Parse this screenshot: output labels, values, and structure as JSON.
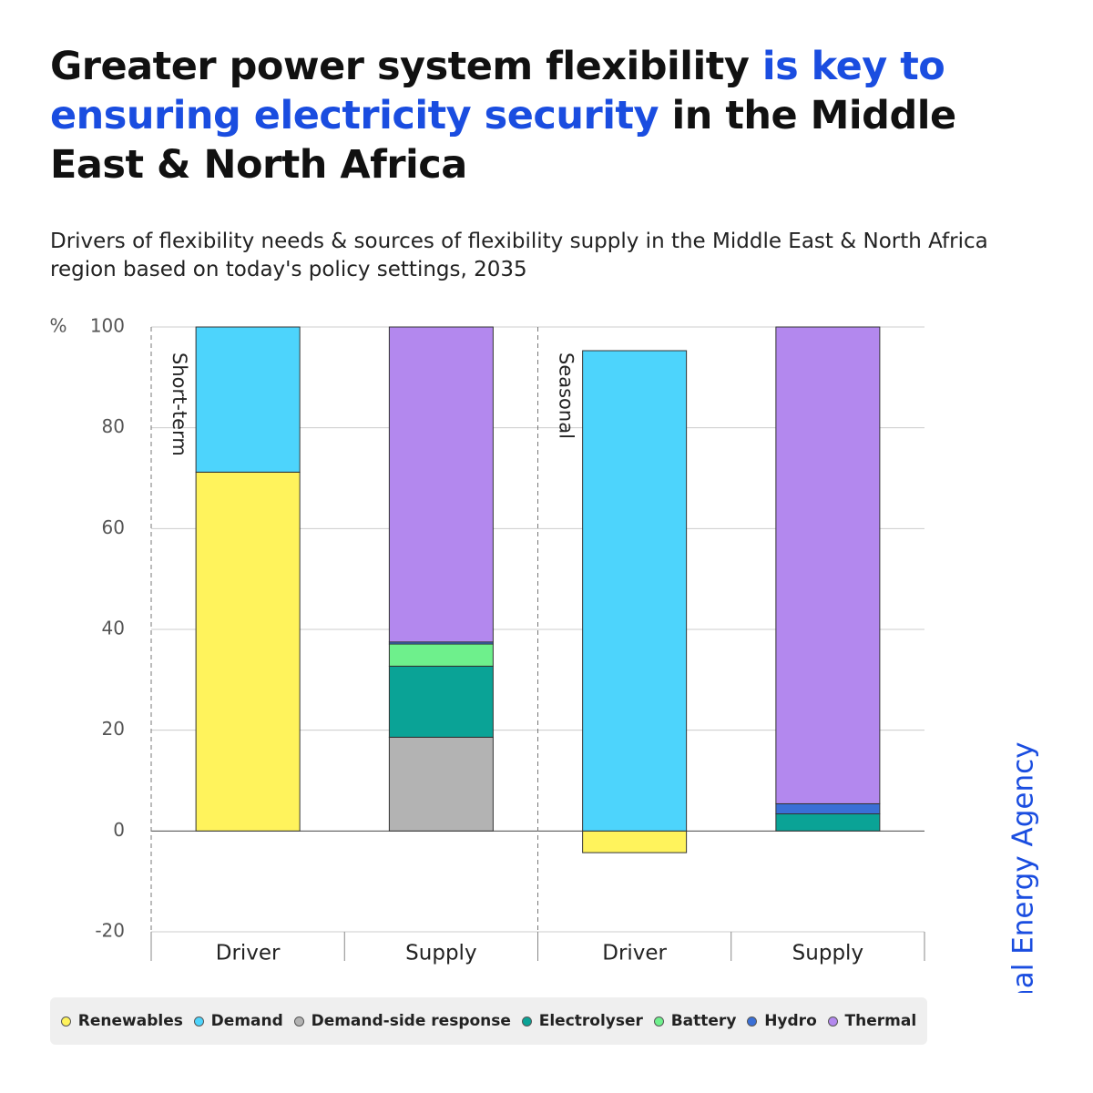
{
  "title_parts": [
    {
      "text": "Greater power system flexibility",
      "highlight": false
    },
    {
      "text": "is key to ensuring electricity security",
      "highlight": true
    },
    {
      "text": "in the Middle East & North Africa",
      "highlight": false
    }
  ],
  "subtitle": "Drivers of flexibility needs & sources of flexibility supply in the Middle East & North Africa region based on today's policy settings, 2035",
  "logo": "International Energy Agency",
  "chart_data": {
    "type": "stacked_bar",
    "y_label": "%",
    "categories": [
      "Driver",
      "Supply",
      "Driver",
      "Supply"
    ],
    "groups": [
      "Short-term",
      "Seasonal"
    ],
    "series": [
      {
        "name": "Renewables",
        "color": "#fff35c",
        "values": [
          71.2,
          null,
          -4.3,
          null
        ]
      },
      {
        "name": "Demand",
        "color": "#4dd4fc",
        "values": [
          28.8,
          null,
          95.3,
          null
        ]
      },
      {
        "name": "Demand-side response",
        "color": "#b3b3b3",
        "values": [
          null,
          18.6,
          null,
          null
        ]
      },
      {
        "name": "Electrolyser",
        "color": "#0aa396",
        "values": [
          null,
          14.1,
          null,
          3.4
        ]
      },
      {
        "name": "Battery",
        "color": "#6ef08c",
        "values": [
          null,
          4.4,
          null,
          null
        ]
      },
      {
        "name": "Hydro",
        "color": "#3a6fd6",
        "values": [
          null,
          0.4,
          null,
          2.0
        ]
      },
      {
        "name": "Thermal",
        "color": "#b388ee",
        "values": [
          null,
          62.5,
          null,
          94.6
        ]
      }
    ],
    "ylim": [
      -20,
      100
    ],
    "yticks": [
      -20,
      0,
      20,
      40,
      60,
      80,
      100
    ],
    "grid": true
  }
}
